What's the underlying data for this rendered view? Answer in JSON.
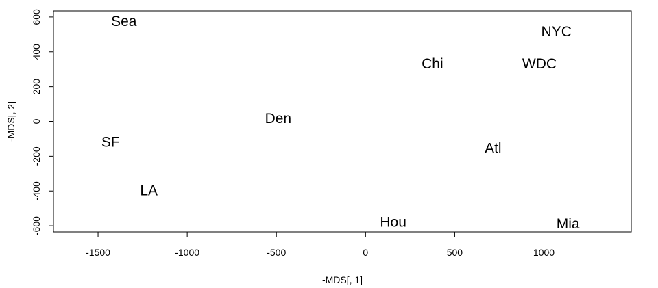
{
  "chart_data": {
    "type": "scatter",
    "xlabel": "-MDS[, 1]",
    "ylabel": "-MDS[, 2]",
    "xlim": [
      -1750,
      1490
    ],
    "ylim": [
      -635,
      635
    ],
    "xticks": [
      -1500,
      -1000,
      -500,
      0,
      500,
      1000
    ],
    "yticks": [
      -600,
      -400,
      -200,
      0,
      200,
      400,
      600
    ],
    "grid": false,
    "points": [
      {
        "label": "Sea",
        "x": -1355,
        "y": 575
      },
      {
        "label": "NYC",
        "x": 1070,
        "y": 515
      },
      {
        "label": "Chi",
        "x": 375,
        "y": 330
      },
      {
        "label": "WDC",
        "x": 975,
        "y": 330
      },
      {
        "label": "Den",
        "x": -490,
        "y": 15
      },
      {
        "label": "SF",
        "x": -1430,
        "y": -120
      },
      {
        "label": "Atl",
        "x": 715,
        "y": -155
      },
      {
        "label": "LA",
        "x": -1215,
        "y": -400
      },
      {
        "label": "Hou",
        "x": 155,
        "y": -580
      },
      {
        "label": "Mia",
        "x": 1135,
        "y": -590
      }
    ]
  }
}
